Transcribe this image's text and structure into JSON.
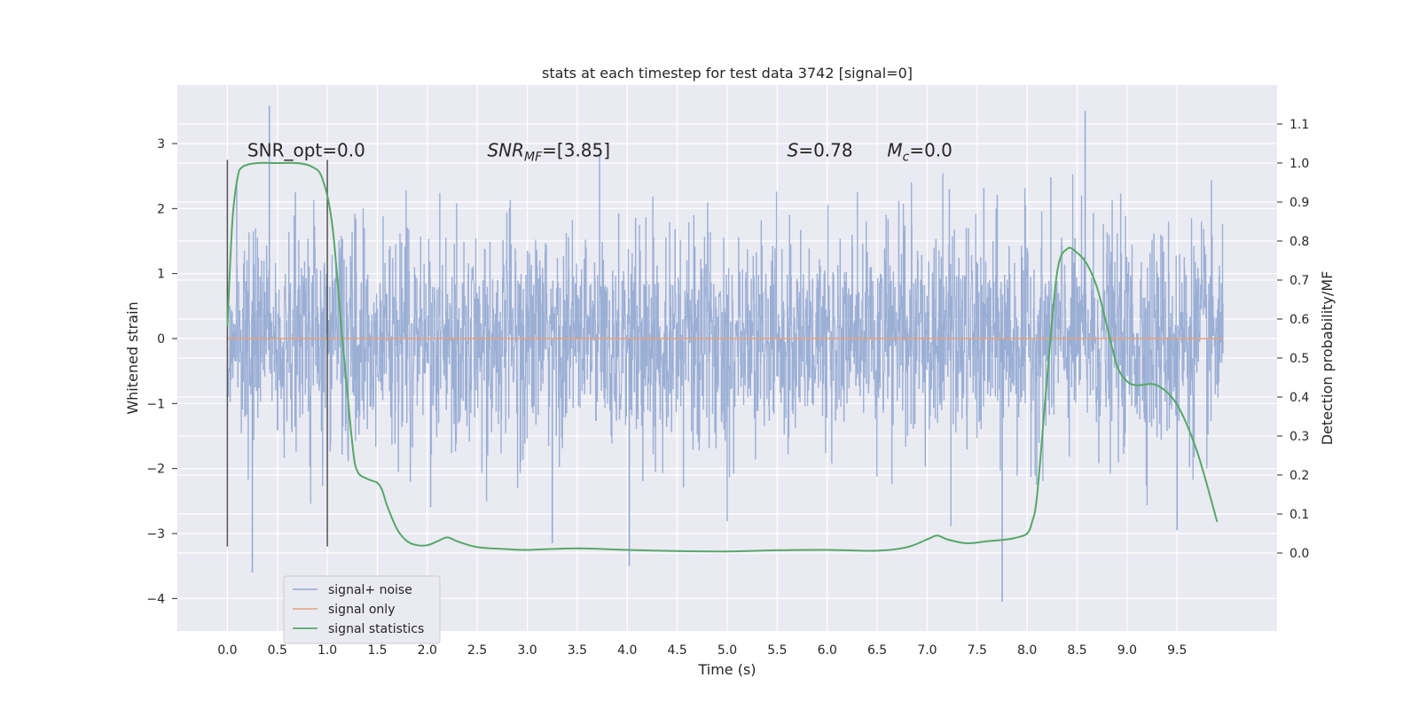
{
  "chart_data": {
    "type": "line",
    "title": "stats at each timestep for test data 3742 [signal=0]",
    "xlabel": "Time (s)",
    "ylabel_left": "Whitened strain",
    "ylabel_right": "Detection probability/MF",
    "xlim": [
      -0.5,
      10.5
    ],
    "ylim_left": [
      -4.5,
      3.9
    ],
    "ylim_right": [
      -0.2,
      1.2
    ],
    "x_ticks": [
      0.0,
      0.5,
      1.0,
      1.5,
      2.0,
      2.5,
      3.0,
      3.5,
      4.0,
      4.5,
      5.0,
      5.5,
      6.0,
      6.5,
      7.0,
      7.5,
      8.0,
      8.5,
      9.0,
      9.5
    ],
    "y_ticks_left": [
      -4,
      -3,
      -2,
      -1,
      0,
      1,
      2,
      3
    ],
    "y_ticks_right": [
      0.0,
      0.1,
      0.2,
      0.3,
      0.4,
      0.5,
      0.6,
      0.7,
      0.8,
      0.9,
      1.0,
      1.1
    ],
    "grid": true,
    "legend_position": "lower-left",
    "series": [
      {
        "name": "signal+ noise",
        "axis": "left",
        "color": "#92a8d1",
        "style": "dense-noise",
        "x_range": [
          0.0,
          9.96
        ],
        "amplitude_typical": 1.5,
        "peak_points": [
          [
            0.42,
            3.58
          ],
          [
            0.25,
            -3.6
          ],
          [
            4.02,
            -3.5
          ],
          [
            7.75,
            -4.05
          ],
          [
            8.58,
            3.5
          ],
          [
            3.25,
            -3.15
          ],
          [
            9.5,
            -2.95
          ]
        ]
      },
      {
        "name": "signal only",
        "axis": "left",
        "color": "#e8a07a",
        "x": [
          0.0,
          9.96
        ],
        "y": [
          0.0,
          0.0
        ]
      },
      {
        "name": "signal statistics",
        "axis": "right",
        "color": "#55a868",
        "x": [
          0.0,
          0.05,
          0.1,
          0.15,
          0.3,
          0.5,
          0.7,
          0.85,
          0.95,
          1.05,
          1.15,
          1.25,
          1.3,
          1.4,
          1.5,
          1.55,
          1.6,
          1.7,
          1.8,
          1.9,
          2.0,
          2.1,
          2.2,
          2.3,
          2.5,
          2.8,
          3.0,
          3.5,
          4.0,
          4.5,
          5.0,
          5.5,
          6.0,
          6.5,
          6.8,
          7.0,
          7.1,
          7.2,
          7.4,
          7.6,
          7.8,
          7.9,
          8.0,
          8.05,
          8.1,
          8.2,
          8.3,
          8.4,
          8.5,
          8.6,
          8.7,
          8.8,
          8.9,
          9.0,
          9.1,
          9.3,
          9.5,
          9.7,
          9.9
        ],
        "y": [
          0.58,
          0.85,
          0.96,
          0.99,
          1.0,
          1.0,
          1.0,
          0.99,
          0.96,
          0.84,
          0.55,
          0.28,
          0.21,
          0.19,
          0.18,
          0.16,
          0.12,
          0.06,
          0.03,
          0.02,
          0.02,
          0.03,
          0.04,
          0.03,
          0.015,
          0.01,
          0.008,
          0.012,
          0.008,
          0.005,
          0.004,
          0.007,
          0.008,
          0.006,
          0.015,
          0.035,
          0.045,
          0.035,
          0.025,
          0.03,
          0.035,
          0.04,
          0.05,
          0.08,
          0.15,
          0.45,
          0.72,
          0.78,
          0.77,
          0.74,
          0.68,
          0.58,
          0.48,
          0.44,
          0.43,
          0.43,
          0.38,
          0.26,
          0.08
        ]
      }
    ],
    "vertical_lines": [
      {
        "x": 0.0,
        "y_range": [
          -3.2,
          2.75
        ],
        "color": "#555555"
      },
      {
        "x": 1.0,
        "y_range": [
          -3.2,
          2.75
        ],
        "color": "#555555"
      }
    ],
    "annotations": [
      {
        "id": "snr-opt",
        "x": 0.2,
        "y": 2.8,
        "text": "SNR_opt=0.0"
      },
      {
        "id": "snr-mf",
        "x": 2.6,
        "y": 2.8,
        "main": "SNR",
        "sub": "MF",
        "suffix": "=[3.85]"
      },
      {
        "id": "s-stat",
        "x": 5.6,
        "y": 2.8,
        "main": "S",
        "suffix": "=0.78"
      },
      {
        "id": "mc-stat",
        "x": 6.6,
        "y": 2.8,
        "main": "M",
        "sub": "c",
        "suffix": "=0.0"
      }
    ]
  }
}
